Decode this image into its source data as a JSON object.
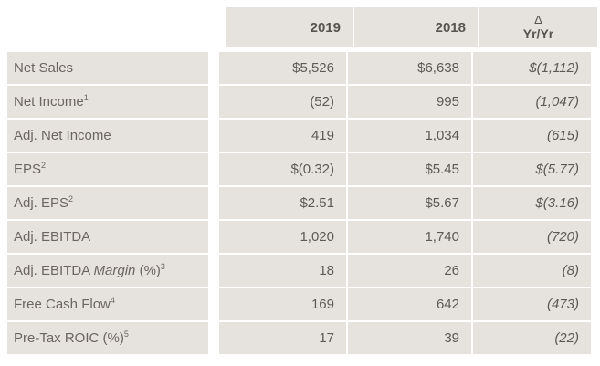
{
  "colors": {
    "page_bg": "#ffffff",
    "cell_bg": "#e6e2dd",
    "header_text": "#57534d",
    "label_text": "#6b6661",
    "value_text": "#5d5954"
  },
  "chart_data": {
    "type": "table",
    "title": "",
    "header": {
      "label_col": "",
      "year_current": "2019",
      "year_prior": "2018",
      "delta_symbol": "Δ",
      "delta_label": "Yr/Yr"
    },
    "rows": [
      {
        "label": "Net Sales",
        "label_italic": "",
        "label_suffix": "",
        "sup": "",
        "y2019": "$5,526",
        "y2018": "$6,638",
        "delta": "$(1,112)"
      },
      {
        "label": "Net Income",
        "label_italic": "",
        "label_suffix": "",
        "sup": "1",
        "y2019": "(52)",
        "y2018": "995",
        "delta": "(1,047)"
      },
      {
        "label": "Adj. Net Income",
        "label_italic": "",
        "label_suffix": "",
        "sup": "",
        "y2019": "419",
        "y2018": "1,034",
        "delta": "(615)"
      },
      {
        "label": "EPS",
        "label_italic": "",
        "label_suffix": "",
        "sup": "2",
        "y2019": "$(0.32)",
        "y2018": "$5.45",
        "delta": "$(5.77)"
      },
      {
        "label": "Adj. EPS",
        "label_italic": "",
        "label_suffix": "",
        "sup": "2",
        "y2019": "$2.51",
        "y2018": "$5.67",
        "delta": "$(3.16)"
      },
      {
        "label": "Adj. EBITDA",
        "label_italic": "",
        "label_suffix": "",
        "sup": "",
        "y2019": "1,020",
        "y2018": "1,740",
        "delta": "(720)"
      },
      {
        "label": "Adj. EBITDA ",
        "label_italic": "Margin",
        "label_suffix": " (%)",
        "sup": "3",
        "y2019": "18",
        "y2018": "26",
        "delta": "(8)"
      },
      {
        "label": "Free Cash Flow",
        "label_italic": "",
        "label_suffix": "",
        "sup": "4",
        "y2019": "169",
        "y2018": "642",
        "delta": "(473)"
      },
      {
        "label": "Pre-Tax ROIC (%)",
        "label_italic": "",
        "label_suffix": "",
        "sup": "5",
        "y2019": "17",
        "y2018": "39",
        "delta": "(22)"
      }
    ]
  }
}
